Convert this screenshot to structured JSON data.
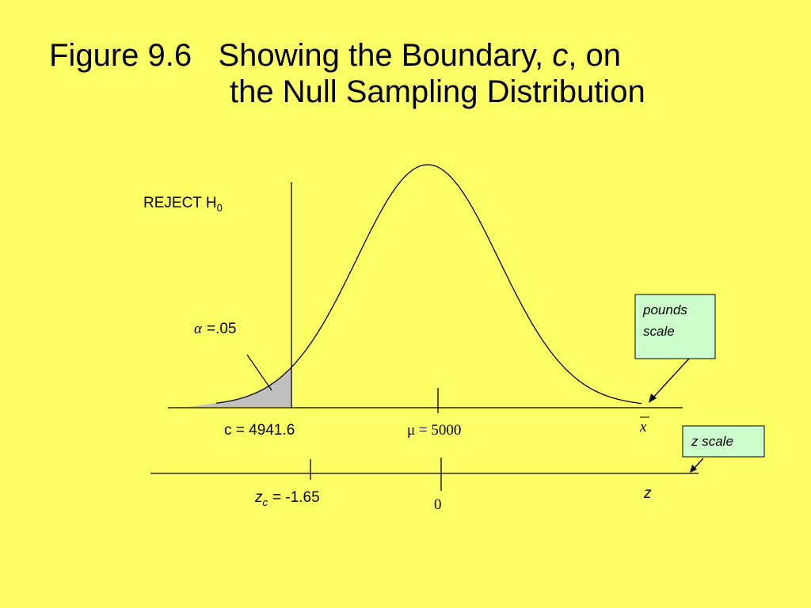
{
  "title": {
    "figure": "Figure 9.6",
    "line1_before": "Showing the Boundary,",
    "line1_italic": "c",
    "line1_after": ", on",
    "line2": "the Null Sampling Distribution"
  },
  "labels": {
    "reject": "REJECT H",
    "reject_sub": "0",
    "alpha_symbol": "α",
    "alpha_value": "=.05",
    "pounds_scale": [
      "pounds",
      "scale"
    ],
    "x_axis": "x",
    "c_value": "c = 4941.6",
    "mu": "μ = 5000",
    "z_scale": "z scale",
    "z_axis": "z",
    "zc_symbol": "z",
    "zc_sub": "c",
    "zc_value": "= -1.65",
    "zero": "0"
  }
}
